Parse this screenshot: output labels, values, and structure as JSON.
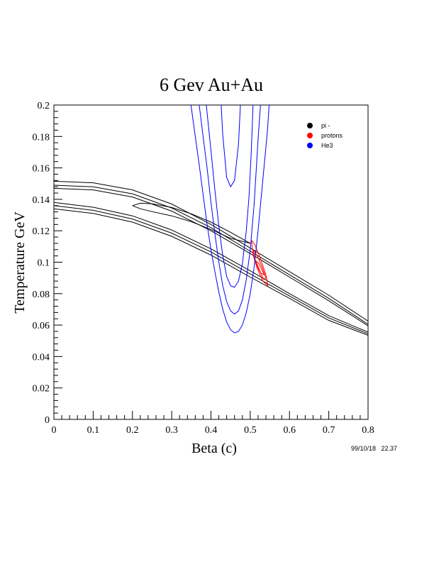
{
  "chart_data": {
    "type": "line",
    "title": "6 Gev Au+Au",
    "xlabel": "Beta (c)",
    "ylabel": "Temperature GeV",
    "xlim": [
      0,
      0.8
    ],
    "ylim": [
      0,
      0.2
    ],
    "xticks": [
      "0",
      "0.1",
      "0.2",
      "0.3",
      "0.4",
      "0.5",
      "0.6",
      "0.7",
      "0.8"
    ],
    "yticks": [
      "0",
      "0.02",
      "0.04",
      "0.06",
      "0.08",
      "0.1",
      "0.12",
      "0.14",
      "0.16",
      "0.18",
      "0.2"
    ],
    "grid": false,
    "legend_position": "top-right",
    "timestamp": "99/10/18   22.37",
    "colors": {
      "pi": "#000000",
      "protons": "#ff0000",
      "he3": "#0000ff"
    },
    "series": [
      {
        "name": "pi -",
        "color": "#000000",
        "contours": [
          {
            "x": [
              0,
              0.1,
              0.2,
              0.3,
              0.4,
              0.5,
              0.6,
              0.7,
              0.8
            ],
            "y": [
              0.1515,
              0.1505,
              0.146,
              0.137,
              0.124,
              0.109,
              0.094,
              0.079,
              0.0625
            ]
          },
          {
            "x": [
              0,
              0.1,
              0.2,
              0.3,
              0.4,
              0.5,
              0.6,
              0.7,
              0.8
            ],
            "y": [
              0.149,
              0.148,
              0.1435,
              0.1345,
              0.122,
              0.107,
              0.092,
              0.077,
              0.0605
            ]
          },
          {
            "x": [
              0,
              0.1,
              0.2,
              0.3,
              0.4,
              0.5,
              0.6,
              0.7,
              0.8
            ],
            "y": [
              0.147,
              0.146,
              0.1415,
              0.1325,
              0.12,
              0.1055,
              0.0905,
              0.0755,
              0.0595
            ]
          },
          {
            "x": [
              0,
              0.1,
              0.2,
              0.3,
              0.4,
              0.5,
              0.6,
              0.7,
              0.8
            ],
            "y": [
              0.138,
              0.135,
              0.1295,
              0.1205,
              0.1085,
              0.0945,
              0.08,
              0.066,
              0.0555
            ]
          },
          {
            "x": [
              0,
              0.1,
              0.2,
              0.3,
              0.4,
              0.5,
              0.6,
              0.7,
              0.8
            ],
            "y": [
              0.136,
              0.133,
              0.1275,
              0.1185,
              0.1065,
              0.0925,
              0.0785,
              0.0645,
              0.0545
            ]
          },
          {
            "x": [
              0,
              0.1,
              0.2,
              0.3,
              0.4,
              0.5,
              0.6,
              0.7,
              0.8
            ],
            "y": [
              0.134,
              0.131,
              0.1255,
              0.1165,
              0.1045,
              0.0905,
              0.077,
              0.063,
              0.0535
            ]
          },
          {
            "x": [
              0.2,
              0.22,
              0.25,
              0.3,
              0.35,
              0.4,
              0.45,
              0.5,
              0.45,
              0.4,
              0.35,
              0.3,
              0.25,
              0.22,
              0.2
            ],
            "y": [
              0.136,
              0.1375,
              0.1372,
              0.1348,
              0.1308,
              0.1255,
              0.119,
              0.112,
              0.1152,
              0.1208,
              0.1258,
              0.1295,
              0.1322,
              0.134,
              0.136
            ]
          }
        ]
      },
      {
        "name": "protons",
        "color": "#ff0000",
        "contours": [
          {
            "x": [
              0.503,
              0.512,
              0.525,
              0.54,
              0.545,
              0.532,
              0.518,
              0.508,
              0.503
            ],
            "y": [
              0.114,
              0.111,
              0.103,
              0.092,
              0.085,
              0.088,
              0.096,
              0.104,
              0.114
            ]
          },
          {
            "x": [
              0.508,
              0.518,
              0.53,
              0.54,
              0.534,
              0.522,
              0.512,
              0.508
            ],
            "y": [
              0.108,
              0.104,
              0.097,
              0.09,
              0.089,
              0.096,
              0.102,
              0.108
            ]
          },
          {
            "x": [
              0.514,
              0.522,
              0.532,
              0.536,
              0.527,
              0.518,
              0.514
            ],
            "y": [
              0.101,
              0.099,
              0.094,
              0.092,
              0.093,
              0.097,
              0.101
            ]
          }
        ]
      },
      {
        "name": "He3",
        "color": "#0000ff",
        "contours": [
          {
            "x": [
              0.349,
              0.36,
              0.37,
              0.38,
              0.39,
              0.4,
              0.41,
              0.42,
              0.43,
              0.44,
              0.45,
              0.46,
              0.47,
              0.48,
              0.49,
              0.5,
              0.51,
              0.52,
              0.53,
              0.538,
              0.544,
              0.548
            ],
            "y": [
              0.2,
              0.18,
              0.162,
              0.143,
              0.124,
              0.108,
              0.094,
              0.081,
              0.07,
              0.062,
              0.057,
              0.055,
              0.056,
              0.06,
              0.068,
              0.08,
              0.097,
              0.12,
              0.147,
              0.168,
              0.184,
              0.2
            ]
          },
          {
            "x": [
              0.37,
              0.38,
              0.39,
              0.4,
              0.41,
              0.42,
              0.43,
              0.44,
              0.45,
              0.46,
              0.47,
              0.48,
              0.49,
              0.5,
              0.51,
              0.52,
              0.526
            ],
            "y": [
              0.2,
              0.18,
              0.16,
              0.138,
              0.118,
              0.1,
              0.085,
              0.075,
              0.069,
              0.067,
              0.069,
              0.076,
              0.089,
              0.108,
              0.137,
              0.178,
              0.2
            ]
          },
          {
            "x": [
              0.388,
              0.4,
              0.41,
              0.42,
              0.43,
              0.44,
              0.45,
              0.46,
              0.47,
              0.48,
              0.49,
              0.497,
              0.503,
              0.507
            ],
            "y": [
              0.2,
              0.171,
              0.146,
              0.123,
              0.104,
              0.091,
              0.085,
              0.084,
              0.088,
              0.099,
              0.12,
              0.142,
              0.172,
              0.2
            ]
          },
          {
            "x": [
              0.426,
              0.43,
              0.44,
              0.45,
              0.46,
              0.47,
              0.475
            ],
            "y": [
              0.2,
              0.181,
              0.154,
              0.148,
              0.152,
              0.175,
              0.2
            ]
          }
        ]
      }
    ]
  }
}
